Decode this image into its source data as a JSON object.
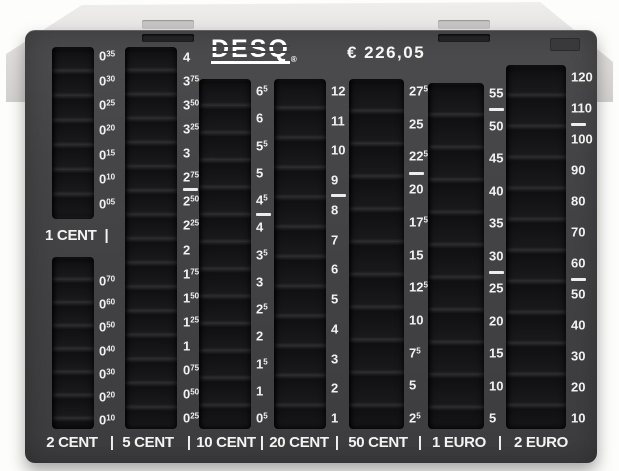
{
  "brand": {
    "logo_text": "DESQ",
    "registered_mark": "®"
  },
  "display": {
    "total_amount": "€ 226,05"
  },
  "separator_glyph": "|",
  "mid_label": {
    "separator": "|"
  },
  "colors": {
    "tray": "#454547",
    "channel": "#151517",
    "lid": "#dedcda",
    "text": "#f1f1ef"
  },
  "bottom_labels": [
    "2 CENT",
    "5 CENT",
    "10 CENT",
    "20 CENT",
    "50 CENT",
    "1 EURO",
    "2 EURO"
  ],
  "columns": [
    {
      "id": "cent1",
      "denomination": "1 CENT",
      "ticks": [
        "0^35",
        "0^30",
        "0^25",
        "0^20",
        "0^15",
        "0^10",
        "0^05"
      ],
      "rules_after": []
    },
    {
      "id": "cent2",
      "denomination": "2 CENT",
      "ticks": [
        "0^70",
        "0^60",
        "0^50",
        "0^40",
        "0^30",
        "0^20",
        "0^10"
      ],
      "rules_after": []
    },
    {
      "id": "cent5",
      "denomination": "5 CENT",
      "ticks": [
        "4",
        "3^75",
        "3^50",
        "3^25",
        "3",
        "2^75",
        "2^50",
        "2^25",
        "2",
        "1^75",
        "1^50",
        "1^25",
        "1",
        "0^75",
        "0^50",
        "0^25"
      ],
      "rules_after": [
        5
      ]
    },
    {
      "id": "cent10",
      "denomination": "10 CENT",
      "ticks": [
        "6^5",
        "6",
        "5^5",
        "5",
        "4^5",
        "4",
        "3^5",
        "3",
        "2^5",
        "2",
        "1^5",
        "1",
        "0^5"
      ],
      "rules_after": [
        4
      ]
    },
    {
      "id": "cent20",
      "denomination": "20 CENT",
      "ticks": [
        "12",
        "11",
        "10",
        "9",
        "8",
        "7",
        "6",
        "5",
        "4",
        "3",
        "2",
        "1"
      ],
      "rules_after": [
        3
      ]
    },
    {
      "id": "cent50",
      "denomination": "50 CENT",
      "ticks": [
        "27^5",
        "25",
        "22^5",
        "20",
        "17^5",
        "15",
        "12^5",
        "10",
        "7^5",
        "5",
        "2^5"
      ],
      "rules_after": [
        2
      ]
    },
    {
      "id": "euro1",
      "denomination": "1 EURO",
      "ticks": [
        "55",
        "50",
        "45",
        "40",
        "35",
        "30",
        "25",
        "20",
        "15",
        "10",
        "5"
      ],
      "rules_after": [
        0,
        5
      ]
    },
    {
      "id": "euro2",
      "denomination": "2 EURO",
      "ticks": [
        "120",
        "110",
        "100",
        "90",
        "80",
        "70",
        "60",
        "50",
        "40",
        "30",
        "20",
        "10"
      ],
      "rules_after": [
        1,
        6
      ]
    }
  ]
}
